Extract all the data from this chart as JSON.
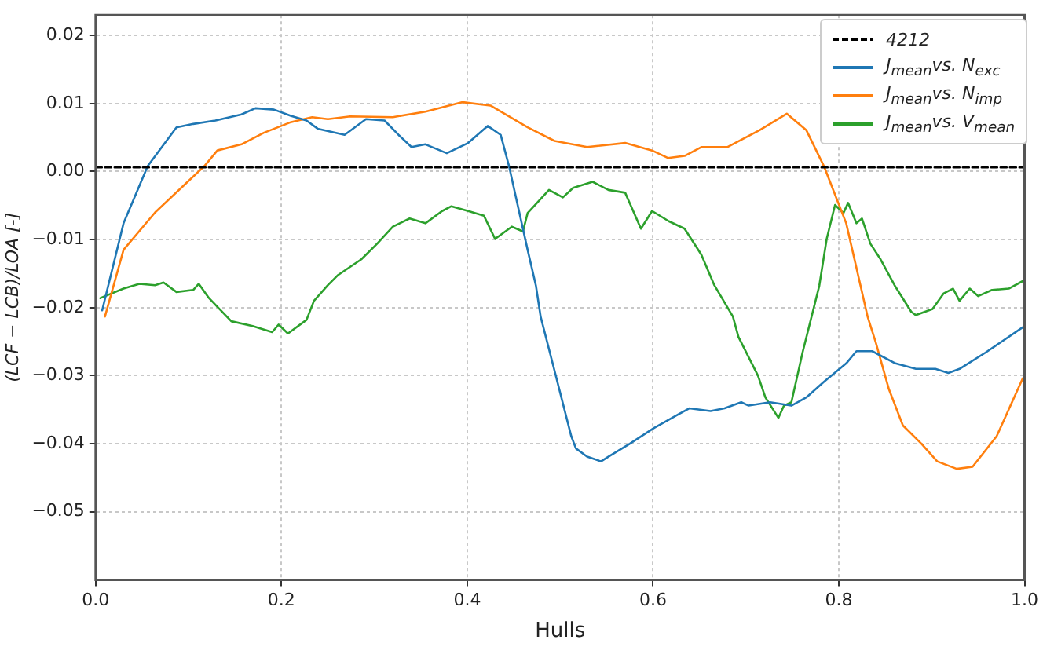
{
  "chart_data": {
    "type": "line",
    "xlabel": "Hulls",
    "ylabel": "(LCF − LCB)/LOA [-]",
    "xlim": [
      0,
      1
    ],
    "ylim": [
      -0.06,
      0.023
    ],
    "xticks": [
      {
        "value": 0,
        "label": "0.0"
      },
      {
        "value": 0.2,
        "label": "0.2"
      },
      {
        "value": 0.4,
        "label": "0.4"
      },
      {
        "value": 0.6,
        "label": "0.6"
      },
      {
        "value": 0.8,
        "label": "0.8"
      },
      {
        "value": 1,
        "label": "1.0"
      }
    ],
    "yticks": [
      {
        "value": -0.05,
        "label": "−0.05"
      },
      {
        "value": -0.04,
        "label": "−0.04"
      },
      {
        "value": -0.03,
        "label": "−0.03"
      },
      {
        "value": -0.02,
        "label": "−0.02"
      },
      {
        "value": -0.01,
        "label": "−0.01"
      },
      {
        "value": 0,
        "label": "0.00"
      },
      {
        "value": 0.01,
        "label": "0.01"
      },
      {
        "value": 0.02,
        "label": "0.02"
      }
    ],
    "grid": true,
    "legend": "top right",
    "marker": "none",
    "line_style": "solid",
    "series": [
      {
        "name": "4212",
        "color": "#000000",
        "line_style": "dashed",
        "x": [
          0,
          1
        ],
        "values": [
          0.0006,
          0.0006
        ]
      },
      {
        "name": "J$_{mean}$vs. N$_{exc}$",
        "color": "#1f77b4",
        "x": [
          0.007,
          0.03,
          0.056,
          0.087,
          0.105,
          0.129,
          0.157,
          0.172,
          0.192,
          0.21,
          0.227,
          0.239,
          0.268,
          0.291,
          0.311,
          0.326,
          0.34,
          0.355,
          0.378,
          0.401,
          0.422,
          0.436,
          0.445,
          0.465,
          0.474,
          0.479,
          0.495,
          0.512,
          0.517,
          0.529,
          0.544,
          0.552,
          0.575,
          0.601,
          0.627,
          0.639,
          0.662,
          0.677,
          0.695,
          0.703,
          0.726,
          0.749,
          0.765,
          0.784,
          0.808,
          0.819,
          0.836,
          0.861,
          0.883,
          0.904,
          0.918,
          0.93,
          0.958,
          0.998
        ],
        "values": [
          -0.0204,
          -0.0076,
          0.0008,
          0.0065,
          0.007,
          0.0075,
          0.0084,
          0.0093,
          0.0091,
          0.0082,
          0.0075,
          0.0063,
          0.0054,
          0.0077,
          0.0075,
          0.0054,
          0.0036,
          0.004,
          0.0027,
          0.0042,
          0.0067,
          0.0054,
          0.0008,
          -0.0115,
          -0.0168,
          -0.0213,
          -0.0298,
          -0.0389,
          -0.0407,
          -0.0419,
          -0.0426,
          -0.0419,
          -0.04,
          -0.0377,
          -0.0357,
          -0.0348,
          -0.0352,
          -0.0348,
          -0.0339,
          -0.0344,
          -0.0339,
          -0.0344,
          -0.0332,
          -0.0309,
          -0.0282,
          -0.0264,
          -0.0264,
          -0.0282,
          -0.029,
          -0.029,
          -0.0296,
          -0.029,
          -0.0266,
          -0.0229
        ]
      },
      {
        "name": "J$_{mean}$vs. N$_{imp}$",
        "color": "#ff7f0e",
        "x": [
          0.01,
          0.03,
          0.064,
          0.099,
          0.117,
          0.131,
          0.157,
          0.181,
          0.209,
          0.233,
          0.25,
          0.274,
          0.32,
          0.355,
          0.395,
          0.425,
          0.465,
          0.494,
          0.529,
          0.57,
          0.599,
          0.616,
          0.634,
          0.652,
          0.68,
          0.715,
          0.744,
          0.765,
          0.784,
          0.808,
          0.831,
          0.84,
          0.854,
          0.869,
          0.889,
          0.906,
          0.927,
          0.944,
          0.97,
          0.998
        ],
        "values": [
          -0.0213,
          -0.0115,
          -0.006,
          -0.0015,
          0.0008,
          0.0031,
          0.004,
          0.0057,
          0.0072,
          0.008,
          0.0077,
          0.0081,
          0.008,
          0.0088,
          0.0102,
          0.0097,
          0.0065,
          0.0045,
          0.0036,
          0.0042,
          0.0031,
          0.002,
          0.0023,
          0.0036,
          0.0036,
          0.0061,
          0.0085,
          0.0061,
          0.0008,
          -0.0076,
          -0.0213,
          -0.0252,
          -0.032,
          -0.0373,
          -0.04,
          -0.0426,
          -0.0437,
          -0.0434,
          -0.0389,
          -0.0304
        ]
      },
      {
        "name": "J$_{mean}$vs. V$_{mean}$",
        "color": "#2ca02c",
        "x": [
          0.005,
          0.03,
          0.047,
          0.064,
          0.073,
          0.087,
          0.105,
          0.111,
          0.122,
          0.146,
          0.169,
          0.19,
          0.197,
          0.207,
          0.227,
          0.235,
          0.25,
          0.261,
          0.286,
          0.303,
          0.32,
          0.338,
          0.355,
          0.373,
          0.383,
          0.401,
          0.418,
          0.43,
          0.448,
          0.46,
          0.465,
          0.488,
          0.503,
          0.514,
          0.535,
          0.552,
          0.57,
          0.587,
          0.599,
          0.617,
          0.634,
          0.652,
          0.666,
          0.686,
          0.692,
          0.713,
          0.721,
          0.735,
          0.741,
          0.749,
          0.761,
          0.779,
          0.787,
          0.796,
          0.805,
          0.81,
          0.819,
          0.825,
          0.834,
          0.845,
          0.86,
          0.878,
          0.883,
          0.901,
          0.913,
          0.923,
          0.93,
          0.941,
          0.95,
          0.965,
          0.983,
          0.998
        ],
        "values": [
          -0.0186,
          -0.0172,
          -0.0165,
          -0.0167,
          -0.0163,
          -0.0177,
          -0.0174,
          -0.0165,
          -0.0186,
          -0.022,
          -0.0227,
          -0.0236,
          -0.0225,
          -0.0238,
          -0.0218,
          -0.019,
          -0.0167,
          -0.0152,
          -0.0129,
          -0.0106,
          -0.0081,
          -0.0069,
          -0.0076,
          -0.0058,
          -0.0051,
          -0.0058,
          -0.0065,
          -0.0099,
          -0.0081,
          -0.0088,
          -0.0061,
          -0.0027,
          -0.0038,
          -0.0024,
          -0.0015,
          -0.0027,
          -0.0031,
          -0.0084,
          -0.0058,
          -0.0073,
          -0.0084,
          -0.0122,
          -0.0167,
          -0.0213,
          -0.0243,
          -0.03,
          -0.0332,
          -0.0362,
          -0.0344,
          -0.0339,
          -0.0266,
          -0.0168,
          -0.0099,
          -0.0049,
          -0.0061,
          -0.0046,
          -0.0076,
          -0.0069,
          -0.0106,
          -0.0129,
          -0.0167,
          -0.0206,
          -0.0211,
          -0.0202,
          -0.0179,
          -0.0172,
          -0.019,
          -0.0172,
          -0.0183,
          -0.0174,
          -0.0172,
          -0.0161
        ]
      }
    ]
  }
}
